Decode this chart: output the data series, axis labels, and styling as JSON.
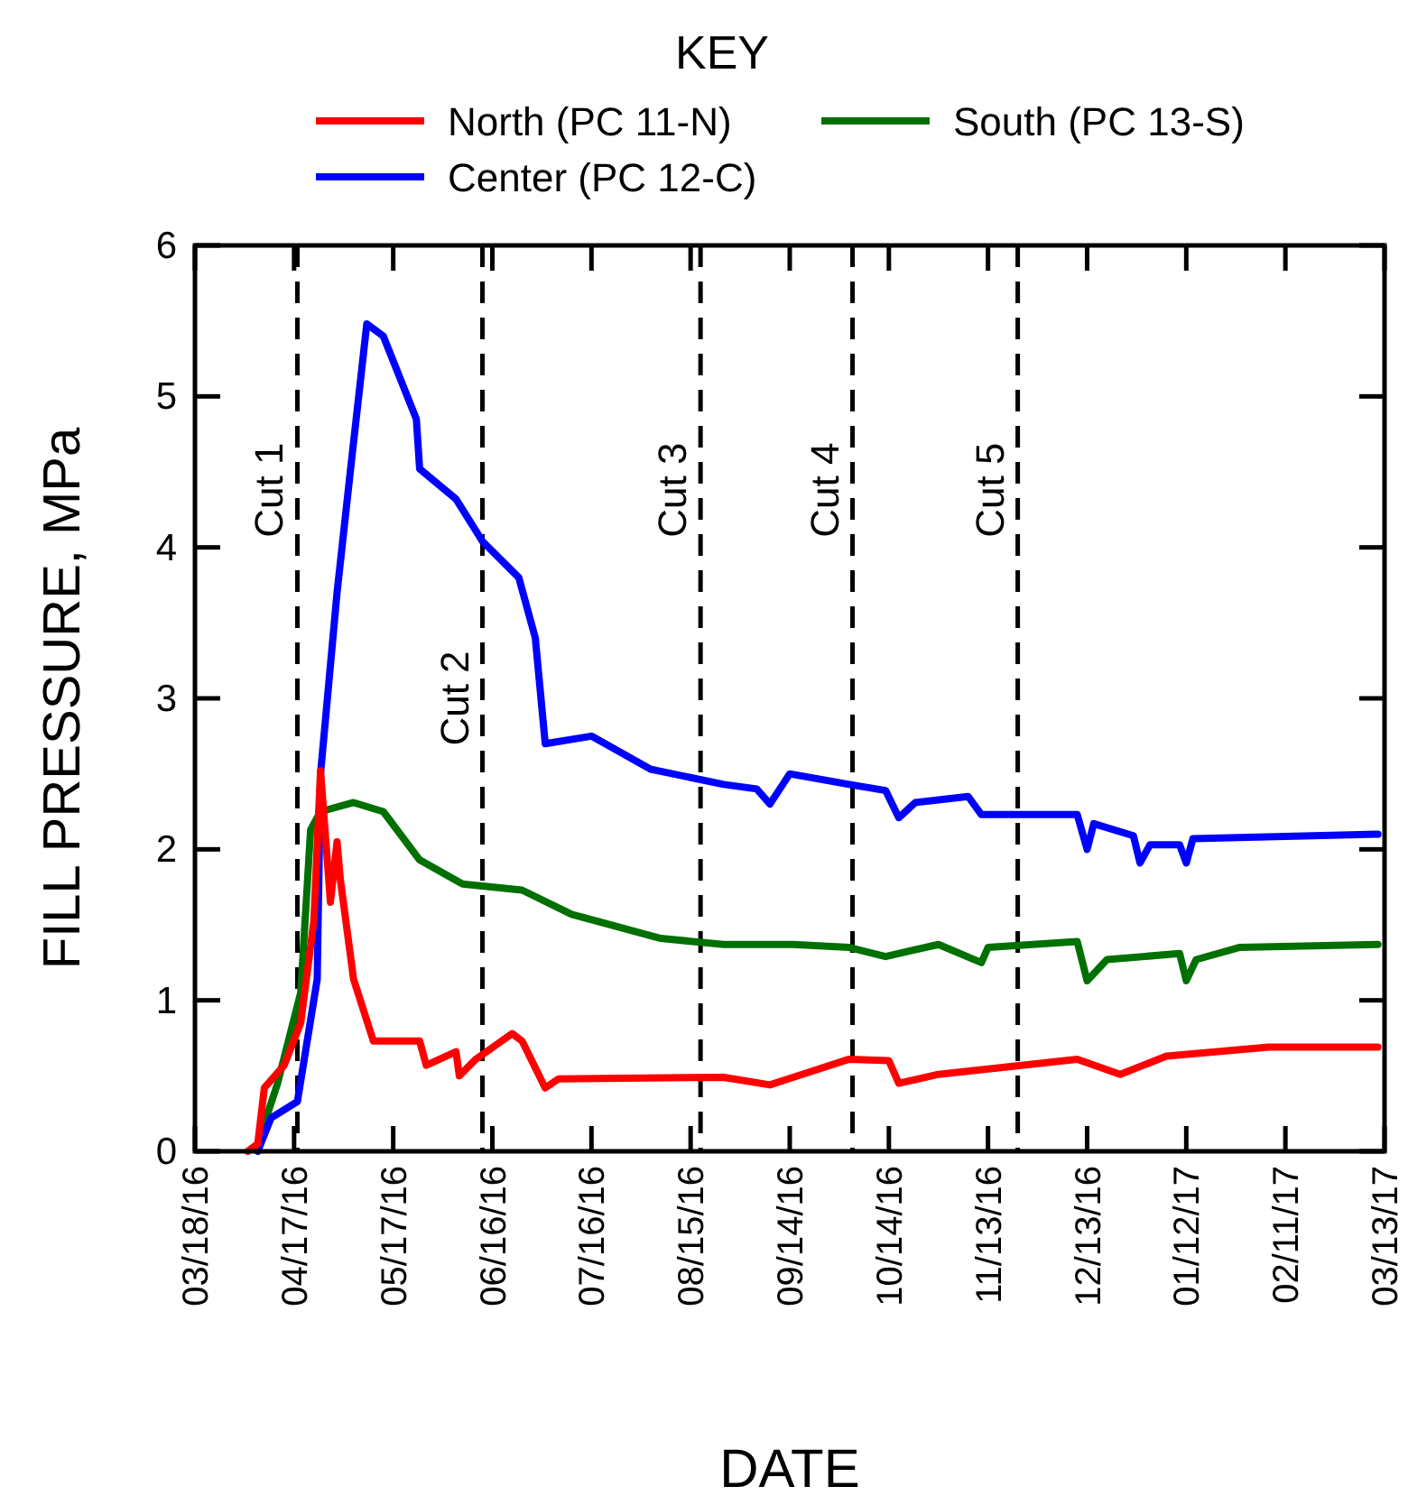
{
  "chart_data": {
    "type": "line",
    "legend_title": "KEY",
    "xlabel": "DATE",
    "ylabel": "FILL PRESSURE, MPa",
    "xlim": [
      "2016-03-18",
      "2017-03-13"
    ],
    "xticks": [
      {
        "value": "2016-03-18",
        "label": "03/18/16"
      },
      {
        "value": "2016-04-17",
        "label": "04/17/16"
      },
      {
        "value": "2016-05-17",
        "label": "05/17/16"
      },
      {
        "value": "2016-06-16",
        "label": "06/16/16"
      },
      {
        "value": "2016-07-16",
        "label": "07/16/16"
      },
      {
        "value": "2016-08-15",
        "label": "08/15/16"
      },
      {
        "value": "2016-09-14",
        "label": "09/14/16"
      },
      {
        "value": "2016-10-14",
        "label": "10/14/16"
      },
      {
        "value": "2016-11-13",
        "label": "11/13/16"
      },
      {
        "value": "2016-12-13",
        "label": "12/13/16"
      },
      {
        "value": "2017-01-12",
        "label": "01/12/17"
      },
      {
        "value": "2017-02-11",
        "label": "02/11/17"
      },
      {
        "value": "2017-03-13",
        "label": "03/13/17"
      }
    ],
    "ylim": [
      0,
      6
    ],
    "yticks": [
      0,
      1,
      2,
      3,
      4,
      5,
      6
    ],
    "grid": false,
    "legend": "top",
    "marker": "none",
    "line_style": "solid",
    "ref_lines": [
      {
        "axis": "x",
        "value": "2016-04-18",
        "label": "Cut 1",
        "color": "#000000",
        "line_style": "dashed"
      },
      {
        "axis": "x",
        "value": "2016-06-13",
        "label": "Cut 2",
        "color": "#000000",
        "line_style": "dashed"
      },
      {
        "axis": "x",
        "value": "2016-08-18",
        "label": "Cut 3",
        "color": "#000000",
        "line_style": "dashed"
      },
      {
        "axis": "x",
        "value": "2016-10-03",
        "label": "Cut 4",
        "color": "#000000",
        "line_style": "dashed"
      },
      {
        "axis": "x",
        "value": "2016-11-22",
        "label": "Cut 5",
        "color": "#000000",
        "line_style": "dashed"
      }
    ],
    "series": [
      {
        "name": "North (PC 11-N)",
        "color": "#ff0000",
        "x": [
          "2016-04-03",
          "2016-04-06",
          "2016-04-08",
          "2016-04-14",
          "2016-04-19",
          "2016-04-23",
          "2016-04-25",
          "2016-04-28",
          "2016-04-30",
          "2016-05-01",
          "2016-05-05",
          "2016-05-11",
          "2016-05-25",
          "2016-05-27",
          "2016-06-05",
          "2016-06-06",
          "2016-06-11",
          "2016-06-22",
          "2016-06-25",
          "2016-07-02",
          "2016-07-06",
          "2016-08-25",
          "2016-09-08",
          "2016-09-15",
          "2016-10-02",
          "2016-10-14",
          "2016-10-17",
          "2016-10-29",
          "2016-12-10",
          "2016-12-23",
          "2017-01-06",
          "2017-02-06",
          "2017-03-11"
        ],
        "values": [
          0,
          0.05,
          0.42,
          0.57,
          0.85,
          1.53,
          2.52,
          1.65,
          2.05,
          1.8,
          1.14,
          0.73,
          0.73,
          0.57,
          0.66,
          0.5,
          0.61,
          0.78,
          0.73,
          0.42,
          0.48,
          0.49,
          0.44,
          0.49,
          0.61,
          0.6,
          0.45,
          0.51,
          0.61,
          0.51,
          0.63,
          0.69,
          0.69
        ]
      },
      {
        "name": "Center (PC 12-C)",
        "color": "#0000ff",
        "x": [
          "2016-04-06",
          "2016-04-10",
          "2016-04-18",
          "2016-04-24",
          "2016-04-25",
          "2016-04-30",
          "2016-05-04",
          "2016-05-09",
          "2016-05-14",
          "2016-05-24",
          "2016-05-25",
          "2016-06-05",
          "2016-06-13",
          "2016-06-24",
          "2016-06-29",
          "2016-07-02",
          "2016-07-16",
          "2016-08-03",
          "2016-08-25",
          "2016-09-04",
          "2016-09-08",
          "2016-09-14",
          "2016-10-02",
          "2016-10-13",
          "2016-10-17",
          "2016-10-22",
          "2016-11-07",
          "2016-11-11",
          "2016-12-10",
          "2016-12-13",
          "2016-12-15",
          "2016-12-27",
          "2016-12-29",
          "2017-01-01",
          "2017-01-10",
          "2017-01-12",
          "2017-01-14",
          "2017-03-11"
        ],
        "values": [
          0,
          0.22,
          0.33,
          1.14,
          2.5,
          3.7,
          4.5,
          5.48,
          5.4,
          4.85,
          4.52,
          4.32,
          4.04,
          3.8,
          3.4,
          2.7,
          2.75,
          2.53,
          2.43,
          2.4,
          2.3,
          2.5,
          2.43,
          2.39,
          2.21,
          2.31,
          2.35,
          2.23,
          2.23,
          2.0,
          2.17,
          2.09,
          1.91,
          2.03,
          2.03,
          1.91,
          2.07,
          2.1
        ]
      },
      {
        "name": "South (PC 13-S)",
        "color": "#007000",
        "x": [
          "2016-04-06",
          "2016-04-12",
          "2016-04-19",
          "2016-04-22",
          "2016-04-25",
          "2016-05-05",
          "2016-05-14",
          "2016-05-25",
          "2016-06-07",
          "2016-06-25",
          "2016-07-10",
          "2016-08-06",
          "2016-08-25",
          "2016-09-15",
          "2016-10-02",
          "2016-10-13",
          "2016-10-29",
          "2016-11-11",
          "2016-11-13",
          "2016-12-10",
          "2016-12-13",
          "2016-12-19",
          "2017-01-10",
          "2017-01-12",
          "2017-01-15",
          "2017-01-28",
          "2017-03-11"
        ],
        "values": [
          0.05,
          0.45,
          1.05,
          2.13,
          2.25,
          2.31,
          2.25,
          1.93,
          1.77,
          1.73,
          1.57,
          1.41,
          1.37,
          1.37,
          1.35,
          1.29,
          1.37,
          1.25,
          1.35,
          1.39,
          1.13,
          1.27,
          1.31,
          1.13,
          1.27,
          1.35,
          1.37
        ]
      }
    ]
  }
}
